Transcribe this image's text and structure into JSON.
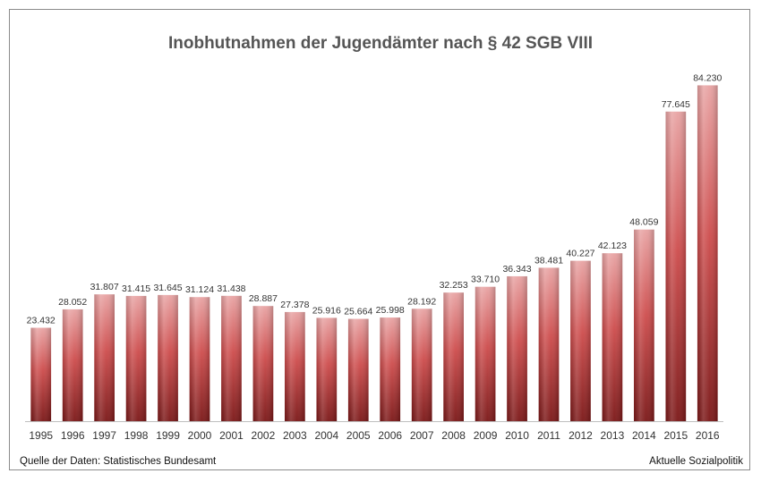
{
  "chart_data": {
    "type": "bar",
    "title": "Inobhutnahmen der Jugendämter nach § 42 SGB VIII",
    "xlabel": "",
    "ylabel": "",
    "ylim": [
      0,
      85000
    ],
    "categories": [
      "1995",
      "1996",
      "1997",
      "1998",
      "1999",
      "2000",
      "2001",
      "2002",
      "2003",
      "2004",
      "2005",
      "2006",
      "2007",
      "2008",
      "2009",
      "2010",
      "2011",
      "2012",
      "2013",
      "2014",
      "2015",
      "2016"
    ],
    "values": [
      23432,
      28052,
      31807,
      31415,
      31645,
      31124,
      31438,
      28887,
      27378,
      25916,
      25664,
      25998,
      28192,
      32253,
      33710,
      36343,
      38481,
      40227,
      42123,
      48059,
      77645,
      84230
    ],
    "value_labels": [
      "23.432",
      "28.052",
      "31.807",
      "31.415",
      "31.645",
      "31.124",
      "31.438",
      "28.887",
      "27.378",
      "25.916",
      "25.664",
      "25.998",
      "28.192",
      "32.253",
      "33.710",
      "36.343",
      "38.481",
      "40.227",
      "42.123",
      "48.059",
      "77.645",
      "84.230"
    ],
    "grid": false,
    "legend": "none",
    "colors": {
      "bar_top": "#e8a3a3",
      "bar_mid": "#cd4b4b",
      "bar_bottom": "#7a1616",
      "axis": "#bfbfbf",
      "text": "#333333"
    }
  },
  "footer": {
    "source": "Quelle der Daten: Statistisches Bundesamt",
    "brand": "Aktuelle Sozialpolitik"
  }
}
